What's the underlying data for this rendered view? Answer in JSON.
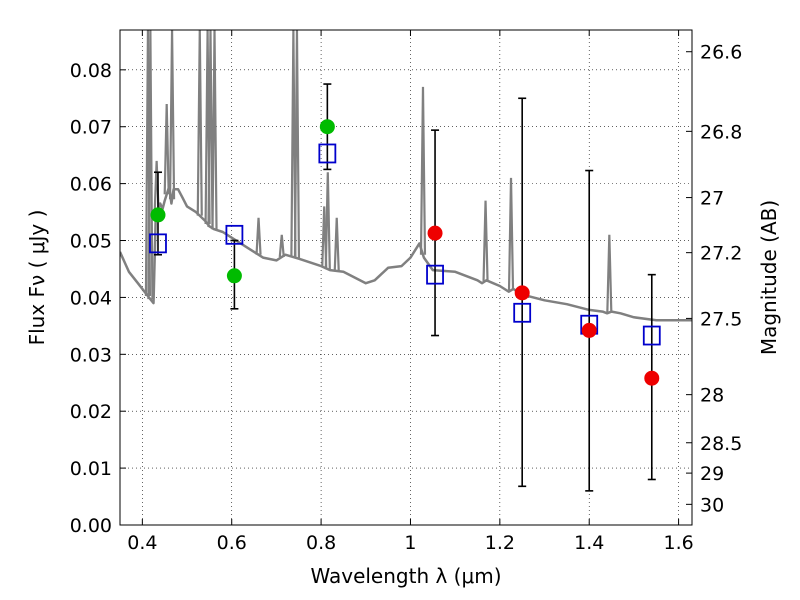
{
  "chart_data": {
    "type": "scatter",
    "title": "",
    "xlabel": "Wavelength  λ (μm)",
    "ylabel": "Flux  Fν  ( μJy )",
    "y2label": "Magnitude (AB)",
    "xlim": [
      0.35,
      1.63
    ],
    "ylim": [
      0.0,
      0.087
    ],
    "grid": true,
    "x_ticks": [
      0.4,
      0.6,
      0.8,
      1.0,
      1.2,
      1.4,
      1.6
    ],
    "x_tick_labels": [
      "0.4",
      "0.6",
      "0.8",
      "1",
      "1.2",
      "1.4",
      "1.6"
    ],
    "y_ticks": [
      0.0,
      0.01,
      0.02,
      0.03,
      0.04,
      0.05,
      0.06,
      0.07,
      0.08
    ],
    "y_tick_labels": [
      "0.00",
      "0.01",
      "0.02",
      "0.03",
      "0.04",
      "0.05",
      "0.06",
      "0.07",
      "0.08"
    ],
    "y2_ticks": [
      26.6,
      26.8,
      27.0,
      27.2,
      27.5,
      28.0,
      28.5,
      29.0,
      30.0
    ],
    "y2_tick_labels": [
      "26.6",
      "26.8",
      "27",
      "27.2",
      "27.5",
      "28",
      "28.5",
      "29",
      "30"
    ],
    "colors": {
      "model": "#808080",
      "green": "#00bb00",
      "red": "#ee0000",
      "box": "#0000cc",
      "errorbar": "#000000"
    },
    "series": [
      {
        "kind": "observed-green",
        "points": [
          {
            "x": 0.435,
            "y": 0.0545,
            "ylo": 0.0475,
            "yhi": 0.062
          },
          {
            "x": 0.606,
            "y": 0.0438,
            "ylo": 0.038,
            "yhi": 0.05
          },
          {
            "x": 0.814,
            "y": 0.07,
            "ylo": 0.0625,
            "yhi": 0.0775
          }
        ]
      },
      {
        "kind": "observed-red",
        "points": [
          {
            "x": 1.055,
            "y": 0.0513,
            "ylo": 0.0333,
            "yhi": 0.0694
          },
          {
            "x": 1.25,
            "y": 0.0408,
            "ylo": 0.0068,
            "yhi": 0.075
          },
          {
            "x": 1.4,
            "y": 0.0342,
            "ylo": 0.006,
            "yhi": 0.0623
          },
          {
            "x": 1.54,
            "y": 0.0258,
            "ylo": 0.008,
            "yhi": 0.044
          }
        ]
      },
      {
        "kind": "model-boxes",
        "points": [
          {
            "x": 0.435,
            "y": 0.0495
          },
          {
            "x": 0.606,
            "y": 0.051
          },
          {
            "x": 0.814,
            "y": 0.0653
          },
          {
            "x": 1.055,
            "y": 0.044
          },
          {
            "x": 1.25,
            "y": 0.0373
          },
          {
            "x": 1.4,
            "y": 0.0352
          },
          {
            "x": 1.54,
            "y": 0.0333
          }
        ]
      },
      {
        "kind": "model-spectrum",
        "x": [
          0.35,
          0.37,
          0.39,
          0.41,
          0.42,
          0.425,
          0.43,
          0.44,
          0.445,
          0.45,
          0.46,
          0.465,
          0.47,
          0.48,
          0.49,
          0.5,
          0.52,
          0.54,
          0.55,
          0.56,
          0.58,
          0.6,
          0.62,
          0.65,
          0.66,
          0.67,
          0.7,
          0.72,
          0.75,
          0.8,
          0.82,
          0.85,
          0.9,
          0.92,
          0.95,
          0.98,
          1.0,
          1.02,
          1.03,
          1.05,
          1.1,
          1.15,
          1.16,
          1.17,
          1.2,
          1.22,
          1.23,
          1.25,
          1.3,
          1.35,
          1.4,
          1.43,
          1.44,
          1.45,
          1.47,
          1.5,
          1.55,
          1.6,
          1.63
        ],
        "y": [
          0.048,
          0.0445,
          0.0425,
          0.0405,
          0.0395,
          0.039,
          0.0545,
          0.0565,
          0.0555,
          0.057,
          0.0595,
          0.0565,
          0.059,
          0.059,
          0.0575,
          0.056,
          0.055,
          0.0535,
          0.0525,
          0.052,
          0.0515,
          0.0505,
          0.0495,
          0.048,
          0.0475,
          0.047,
          0.0465,
          0.0475,
          0.0468,
          0.0455,
          0.0448,
          0.0445,
          0.0425,
          0.043,
          0.0452,
          0.0455,
          0.047,
          0.0495,
          0.047,
          0.0448,
          0.0445,
          0.043,
          0.0425,
          0.043,
          0.042,
          0.041,
          0.0415,
          0.0405,
          0.0395,
          0.0388,
          0.0378,
          0.0375,
          0.0372,
          0.0375,
          0.0372,
          0.0365,
          0.036,
          0.036,
          0.036
        ]
      },
      {
        "kind": "model-emission-lines",
        "lines": [
          {
            "x": 0.4125,
            "peak": 0.087
          },
          {
            "x": 0.418,
            "peak": 0.087
          },
          {
            "x": 0.432,
            "peak": 0.064
          },
          {
            "x": 0.4545,
            "peak": 0.074
          },
          {
            "x": 0.4665,
            "peak": 0.087
          },
          {
            "x": 0.5285,
            "peak": 0.087
          },
          {
            "x": 0.546,
            "peak": 0.087
          },
          {
            "x": 0.5525,
            "peak": 0.087
          },
          {
            "x": 0.5615,
            "peak": 0.087
          },
          {
            "x": 0.66,
            "peak": 0.054
          },
          {
            "x": 0.712,
            "peak": 0.051
          },
          {
            "x": 0.738,
            "peak": 0.087
          },
          {
            "x": 0.746,
            "peak": 0.087
          },
          {
            "x": 0.807,
            "peak": 0.056
          },
          {
            "x": 0.815,
            "peak": 0.062
          },
          {
            "x": 0.835,
            "peak": 0.054
          },
          {
            "x": 1.028,
            "peak": 0.077
          },
          {
            "x": 1.168,
            "peak": 0.057
          },
          {
            "x": 1.225,
            "peak": 0.061
          },
          {
            "x": 1.445,
            "peak": 0.051
          }
        ]
      }
    ]
  }
}
